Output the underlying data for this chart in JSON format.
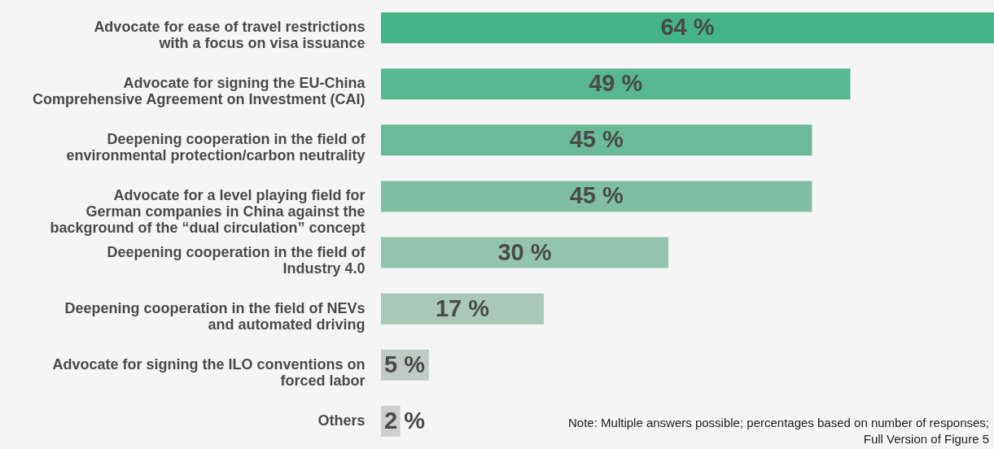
{
  "chart_data": {
    "type": "bar",
    "orientation": "horizontal",
    "categories": [
      "Advocate for ease of travel restrictions with a focus on visa issuance",
      "Advocate for signing the EU-China Comprehensive Agreement on Investment (CAI)",
      "Deepening cooperation in the field of environmental protection/carbon neutrality",
      "Advocate for a level playing field for German companies in China against the background of the “dual circulation” concept",
      "Deepening cooperation in the field of Industry 4.0",
      "Deepening cooperation in the field of NEVs and automated driving",
      "Advocate for signing the ILO conventions on forced labor",
      "Others"
    ],
    "values": [
      64,
      49,
      45,
      45,
      30,
      17,
      5,
      2
    ],
    "value_labels": [
      "64 %",
      "49 %",
      "45 %",
      "45 %",
      "30 %",
      "17 %",
      "5 %",
      "2 %"
    ],
    "colors": [
      "#45b486",
      "#57b78f",
      "#6bba98",
      "#80bfa4",
      "#95c4ae",
      "#aac8ba",
      "#c0cbc5",
      "#cfcfcf"
    ],
    "xlim": [
      0,
      64
    ],
    "annotations": [
      "Note: Multiple answers possible; percentages based on number of responses; Full Version of Figure 5"
    ]
  }
}
